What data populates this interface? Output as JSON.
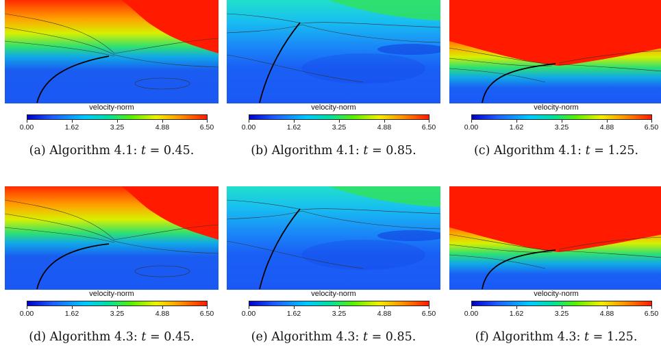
{
  "figure": {
    "panels": [
      {
        "id": "a",
        "caption_prefix": "(a) Algorithm 4.1:",
        "caption_var": "t",
        "caption_value": "= 0.45.",
        "colorbar_title": "velocity-norm",
        "state": "t045"
      },
      {
        "id": "b",
        "caption_prefix": "(b) Algorithm 4.1:",
        "caption_var": "t",
        "caption_value": "= 0.85.",
        "colorbar_title": "velocity-norm",
        "state": "t085"
      },
      {
        "id": "c",
        "caption_prefix": "(c) Algorithm 4.1:",
        "caption_var": "t",
        "caption_value": "= 1.25.",
        "colorbar_title": "velocity-norm",
        "state": "t125"
      },
      {
        "id": "d",
        "caption_prefix": "(d) Algorithm 4.3:",
        "caption_var": "t",
        "caption_value": "= 0.45.",
        "colorbar_title": "velocity-norm",
        "state": "t045"
      },
      {
        "id": "e",
        "caption_prefix": "(e) Algorithm 4.3:",
        "caption_var": "t",
        "caption_value": "= 0.85.",
        "colorbar_title": "velocity-norm",
        "state": "t085"
      },
      {
        "id": "f",
        "caption_prefix": "(f) Algorithm 4.3:",
        "caption_var": "t",
        "caption_value": "= 1.25.",
        "colorbar_title": "velocity-norm",
        "state": "t125"
      }
    ],
    "colorbar": {
      "ticks": [
        "0.00",
        "1.62",
        "3.25",
        "4.88",
        "6.50"
      ],
      "range": [
        0.0,
        6.5
      ],
      "colors": [
        "#0000c8",
        "#1e5cff",
        "#00c8ff",
        "#00e0a0",
        "#5af000",
        "#f0f000",
        "#ff8c00",
        "#ff1a00"
      ]
    }
  }
}
